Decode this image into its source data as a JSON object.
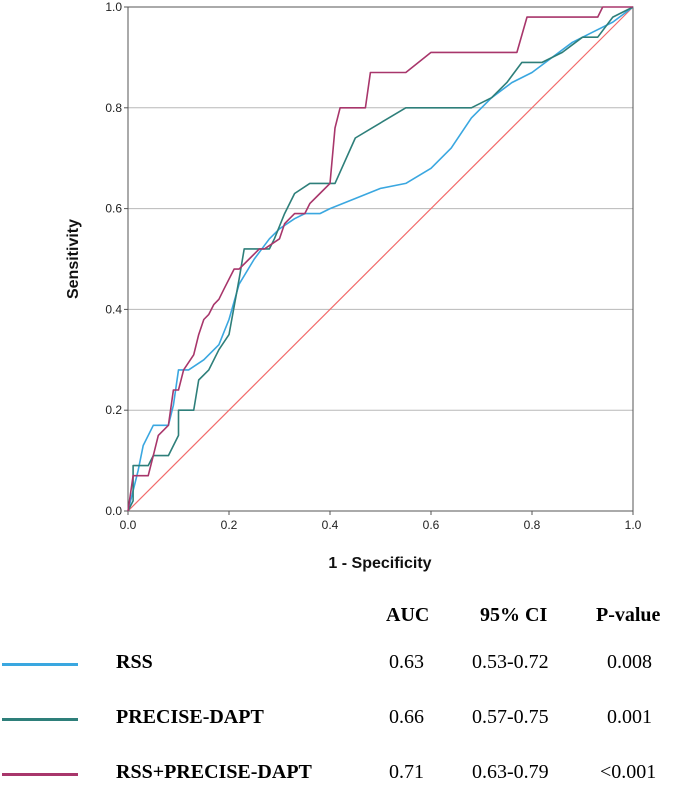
{
  "chart_data": {
    "type": "line",
    "title": "",
    "xlabel": "1 - Specificity",
    "ylabel": "Sensitivity",
    "xlim": [
      0,
      1
    ],
    "ylim": [
      0,
      1
    ],
    "xticks": [
      "0.0",
      "0.2",
      "0.4",
      "0.6",
      "0.8",
      "1.0"
    ],
    "yticks": [
      "0.0",
      "0.2",
      "0.4",
      "0.6",
      "0.8",
      "1.0"
    ],
    "grid": "horizontal",
    "reference_line": {
      "x": [
        0,
        1
      ],
      "y": [
        0,
        1
      ],
      "color": "#f26b6b"
    },
    "series": [
      {
        "name": "RSS",
        "color": "#3aa7e0",
        "x": [
          0,
          0.01,
          0.02,
          0.03,
          0.05,
          0.08,
          0.09,
          0.1,
          0.12,
          0.15,
          0.18,
          0.2,
          0.22,
          0.25,
          0.28,
          0.3,
          0.33,
          0.35,
          0.38,
          0.4,
          0.45,
          0.5,
          0.55,
          0.6,
          0.64,
          0.68,
          0.72,
          0.76,
          0.8,
          0.84,
          0.88,
          0.92,
          0.96,
          1.0
        ],
        "y": [
          0,
          0.04,
          0.08,
          0.13,
          0.17,
          0.17,
          0.21,
          0.28,
          0.28,
          0.3,
          0.33,
          0.38,
          0.45,
          0.5,
          0.54,
          0.56,
          0.58,
          0.59,
          0.59,
          0.6,
          0.62,
          0.64,
          0.65,
          0.68,
          0.72,
          0.78,
          0.82,
          0.85,
          0.87,
          0.9,
          0.93,
          0.95,
          0.97,
          1.0
        ]
      },
      {
        "name": "PRECISE-DAPT",
        "color": "#2e7f7a",
        "x": [
          0,
          0.01,
          0.01,
          0.04,
          0.05,
          0.08,
          0.1,
          0.1,
          0.11,
          0.13,
          0.14,
          0.16,
          0.18,
          0.2,
          0.22,
          0.23,
          0.24,
          0.27,
          0.28,
          0.29,
          0.31,
          0.33,
          0.36,
          0.38,
          0.41,
          0.45,
          0.5,
          0.55,
          0.62,
          0.68,
          0.72,
          0.75,
          0.78,
          0.82,
          0.86,
          0.9,
          0.93,
          0.96,
          1.0
        ],
        "y": [
          0,
          0.02,
          0.09,
          0.09,
          0.11,
          0.11,
          0.15,
          0.2,
          0.2,
          0.2,
          0.26,
          0.28,
          0.32,
          0.35,
          0.46,
          0.52,
          0.52,
          0.52,
          0.52,
          0.54,
          0.59,
          0.63,
          0.65,
          0.65,
          0.65,
          0.74,
          0.77,
          0.8,
          0.8,
          0.8,
          0.82,
          0.85,
          0.89,
          0.89,
          0.91,
          0.94,
          0.94,
          0.98,
          1.0
        ]
      },
      {
        "name": "RSS+PRECISE-DAPT",
        "color": "#a8366b",
        "x": [
          0,
          0.01,
          0.04,
          0.05,
          0.06,
          0.08,
          0.09,
          0.1,
          0.11,
          0.13,
          0.14,
          0.15,
          0.16,
          0.17,
          0.18,
          0.19,
          0.21,
          0.22,
          0.24,
          0.26,
          0.27,
          0.3,
          0.31,
          0.33,
          0.35,
          0.36,
          0.38,
          0.4,
          0.41,
          0.42,
          0.43,
          0.47,
          0.48,
          0.5,
          0.55,
          0.6,
          0.65,
          0.7,
          0.77,
          0.79,
          0.85,
          0.92,
          0.93,
          0.94,
          0.95,
          1.0
        ],
        "y": [
          0,
          0.07,
          0.07,
          0.11,
          0.15,
          0.17,
          0.24,
          0.24,
          0.28,
          0.31,
          0.35,
          0.38,
          0.39,
          0.41,
          0.42,
          0.44,
          0.48,
          0.48,
          0.5,
          0.52,
          0.52,
          0.54,
          0.57,
          0.59,
          0.59,
          0.61,
          0.63,
          0.65,
          0.76,
          0.8,
          0.8,
          0.8,
          0.87,
          0.87,
          0.87,
          0.91,
          0.91,
          0.91,
          0.91,
          0.98,
          0.98,
          0.98,
          0.98,
          1.0,
          1.0,
          1.0
        ]
      }
    ]
  },
  "legend_table": {
    "headers": {
      "auc": "AUC",
      "ci": "95% CI",
      "p": "P-value"
    },
    "rows": [
      {
        "name": "RSS",
        "color": "#3aa7e0",
        "auc": "0.63",
        "ci": "0.53-0.72",
        "p": "0.008"
      },
      {
        "name": "PRECISE-DAPT",
        "color": "#2e7f7a",
        "auc": "0.66",
        "ci": "0.57-0.75",
        "p": "0.001"
      },
      {
        "name": "RSS+PRECISE-DAPT",
        "color": "#a8366b",
        "auc": "0.71",
        "ci": "0.63-0.79",
        "p": "<0.001"
      }
    ]
  }
}
